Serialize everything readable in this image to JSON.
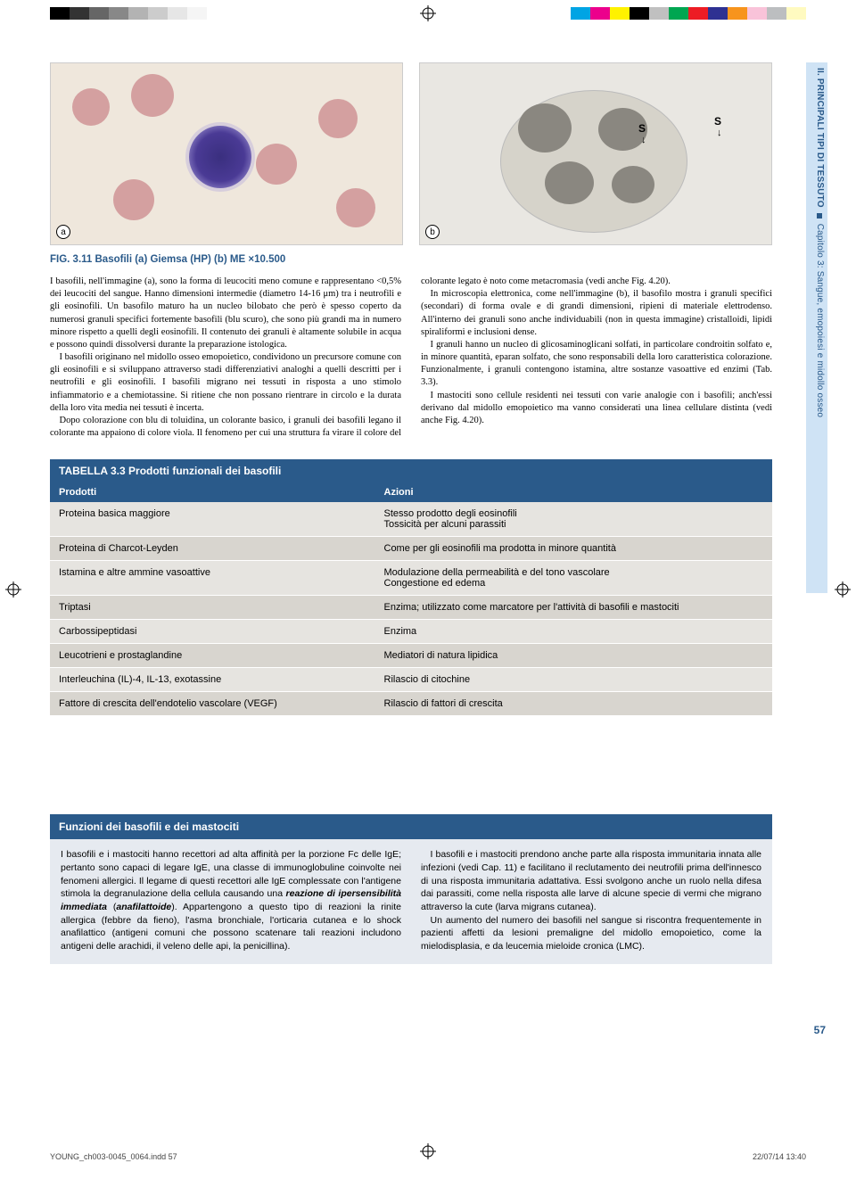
{
  "colorbar_left": [
    "#000000",
    "#333333",
    "#666666",
    "#888888",
    "#b3b3b3",
    "#cccccc",
    "#e6e6e6",
    "#f5f5f5",
    "#ffffff",
    "#ffffff"
  ],
  "colorbar_right": [
    "#00a4e4",
    "#ec008c",
    "#fff200",
    "#000000",
    "#c0c0c0",
    "#00a651",
    "#ed1c24",
    "#2e3192",
    "#f7941d",
    "#f9c3d9",
    "#bcbec0",
    "#fffac0"
  ],
  "fig_labels": {
    "a": "a",
    "b": "b"
  },
  "s_marker": "S",
  "caption": "FIG. 3.11 Basofili (a) Giemsa (HP) (b) ME ×10.500",
  "body_paragraphs": [
    "I basofili, nell'immagine (a), sono la forma di leucociti meno comune e rappresentano <0,5% dei leucociti del sangue. Hanno dimensioni intermedie (diametro 14-16 μm) tra i neutrofili e gli eosinofili. Un basofilo maturo ha un nucleo bilobato che però è spesso coperto da numerosi granuli specifici fortemente basofili (blu scuro), che sono più grandi ma in numero minore rispetto a quelli degli eosinofili. Il contenuto dei granuli è altamente solubile in acqua e possono quindi dissolversi durante la preparazione istologica.",
    "I basofili originano nel midollo osseo emopoietico, condividono un precursore comune con gli eosinofili e si sviluppano attraverso stadi differenziativi analoghi a quelli descritti per i neutrofili e gli eosinofili. I basofili migrano nei tessuti in risposta a uno stimolo infiammatorio e a chemiotassine. Si ritiene che non possano rientrare in circolo e la durata della loro vita media nei tessuti è incerta.",
    "Dopo colorazione con blu di toluidina, un colorante basico, i granuli dei basofili legano il colorante ma appaiono di colore viola. Il fenomeno per cui una struttura fa virare il colore del colorante legato è noto come metacromasia (vedi anche Fig. 4.20).",
    "In microscopia elettronica, come nell'immagine (b), il basofilo mostra i granuli specifici (secondari) di forma ovale e di grandi dimensioni, ripieni di materiale elettrodenso. All'interno dei granuli sono anche individuabili (non in questa immagine) cristalloidi, lipidi spiraliformi e inclusioni dense.",
    "I granuli hanno un nucleo di glicosaminoglicani solfati, in particolare condroitin solfato e, in minore quantità, eparan solfato, che sono responsabili della loro caratteristica colorazione. Funzionalmente, i granuli contengono istamina, altre sostanze vasoattive ed enzimi (Tab. 3.3).",
    "I mastociti sono cellule residenti nei tessuti con varie analogie con i basofili; anch'essi derivano dal midollo emopoietico ma vanno considerati una linea cellulare distinta (vedi anche Fig. 4.20)."
  ],
  "table": {
    "title_prefix": "TABELLA 3.3",
    "title": "Prodotti funzionali dei basofili",
    "header": [
      "Prodotti",
      "Azioni"
    ],
    "rows": [
      [
        "Proteina basica maggiore",
        "Stesso prodotto degli eosinofili\nTossicità per alcuni parassiti"
      ],
      [
        "Proteina di Charcot-Leyden",
        "Come per gli eosinofili ma prodotta in minore quantità"
      ],
      [
        "Istamina e altre ammine vasoattive",
        "Modulazione della permeabilità e del tono vascolare\nCongestione ed edema"
      ],
      [
        "Triptasi",
        "Enzima; utilizzato come marcatore per l'attività di basofili e mastociti"
      ],
      [
        "Carbossipeptidasi",
        "Enzima"
      ],
      [
        "Leucotrieni e prostaglandine",
        "Mediatori di natura lipidica"
      ],
      [
        "Interleuchina (IL)-4, IL-13, exotassine",
        "Rilascio di citochine"
      ],
      [
        "Fattore di crescita dell'endotelio vascolare (VEGF)",
        "Rilascio di fattori di crescita"
      ]
    ]
  },
  "box": {
    "title": "Funzioni dei basofili e dei mastociti",
    "paragraphs_left": [
      "I basofili e i mastociti hanno recettori ad alta affinità per la porzione Fc delle IgE; pertanto sono capaci di legare IgE, una classe di immunoglobuline coinvolte nei fenomeni allergici. Il legame di questi recettori alle IgE complessate con l'antigene stimola la degranulazione della cellula causando una <span class=\"em\">reazione di ipersensibilità immediata</span> (<span class=\"em\">anafilattoide</span>). Appartengono a questo tipo di reazioni la rinite allergica (febbre da fieno), l'asma bronchiale, l'orticaria cutanea e lo shock anafilattico (antigeni comuni che possono scatenare tali reazioni includono antigeni delle arachidi, il veleno delle api, la penicillina)."
    ],
    "paragraphs_right": [
      "I basofili e i mastociti prendono anche parte alla risposta immunitaria innata alle infezioni (vedi Cap. 11) e facilitano il reclutamento dei neutrofili prima dell'innesco di una risposta immunitaria adattativa. Essi svolgono anche un ruolo nella difesa dai parassiti, come nella risposta alle larve di alcune specie di vermi che migrano attraverso la cute (larva migrans cutanea).",
      "Un aumento del numero dei basofili nel sangue si riscontra frequentemente in pazienti affetti da lesioni premaligne del midollo emopoietico, come la mielodisplasia, e da leucemia mieloide cronica (LMC)."
    ]
  },
  "side_label": {
    "part": "II. PRINCIPALI TIPI DI TESSUTO",
    "chapter": "Capitolo 3: Sangue, emopoiesi e midollo osseo"
  },
  "page_number": "57",
  "footer_left": "YOUNG_ch003-0045_0064.indd   57",
  "footer_right": "22/07/14   13:40"
}
